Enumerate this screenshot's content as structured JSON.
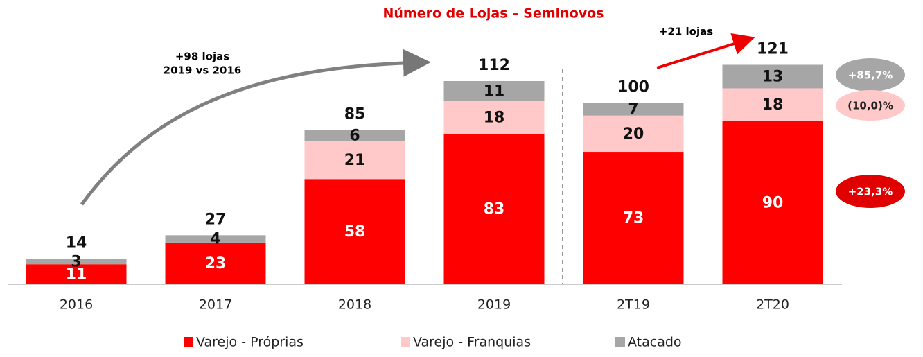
{
  "chart_data": {
    "type": "stacked_bar",
    "title": "Número de Lojas – Seminovos",
    "categories": [
      "2016",
      "2017",
      "2018",
      "2019",
      "2T19",
      "2T20"
    ],
    "series": [
      {
        "name": "Varejo - Próprias",
        "color": "#ff0000",
        "values": [
          11,
          23,
          58,
          83,
          73,
          90
        ]
      },
      {
        "name": "Varejo - Franquias",
        "color": "#ffc9c9",
        "values": [
          null,
          null,
          21,
          18,
          20,
          18
        ]
      },
      {
        "name": "Atacado",
        "color": "#a6a6a6",
        "values": [
          3,
          4,
          6,
          11,
          7,
          13
        ]
      }
    ],
    "totals": [
      14,
      27,
      85,
      112,
      100,
      121
    ],
    "ylim": [
      0,
      125
    ],
    "annotations": [
      "+98 lojas",
      "2019 vs 2016",
      "+21 lojas",
      "+85,7%",
      "(10,0)%",
      "+23,3%"
    ]
  }
}
